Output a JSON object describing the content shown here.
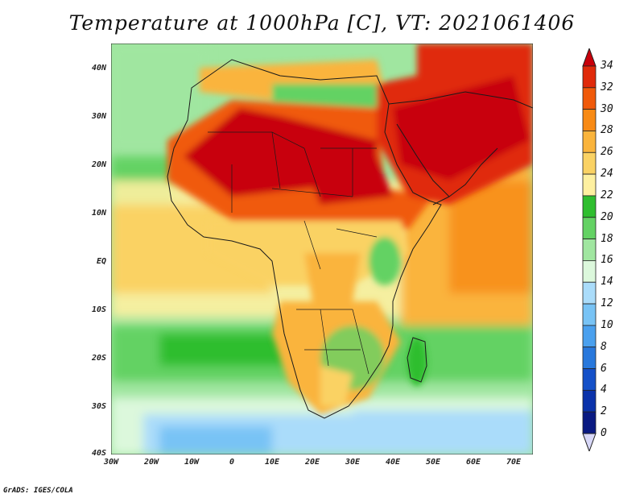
{
  "title": "Temperature at 1000hPa [C], VT: 2021061406",
  "credit": "GrADS: IGES/COLA",
  "map": {
    "variable": "Temperature at 1000hPa",
    "units": "C",
    "valid_time": "2021061406",
    "lat_range": [
      -40,
      45
    ],
    "lon_range": [
      -30,
      75
    ],
    "lat_ticks": [
      "40N",
      "30N",
      "20N",
      "10N",
      "EQ",
      "10S",
      "20S",
      "30S",
      "40S"
    ],
    "lon_ticks": [
      "30W",
      "20W",
      "10W",
      "0",
      "10E",
      "20E",
      "30E",
      "40E",
      "50E",
      "60E",
      "70E"
    ]
  },
  "colorbar": {
    "levels": [
      "34",
      "32",
      "30",
      "28",
      "26",
      "24",
      "22",
      "20",
      "18",
      "16",
      "14",
      "12",
      "10",
      "8",
      "6",
      "4",
      "2",
      "0"
    ],
    "colors": [
      "#c8000a",
      "#e02a0a",
      "#f05a0a",
      "#f88a14",
      "#fab43c",
      "#fad264",
      "#fef0a0",
      "#2fbe2f",
      "#64d264",
      "#a0e6a0",
      "#dcf8dc",
      "#aadcfa",
      "#78c3f5",
      "#4aa0ee",
      "#2878dc",
      "#1450c8",
      "#0a32aa",
      "#0a1a82",
      "#d8d8f8"
    ]
  }
}
